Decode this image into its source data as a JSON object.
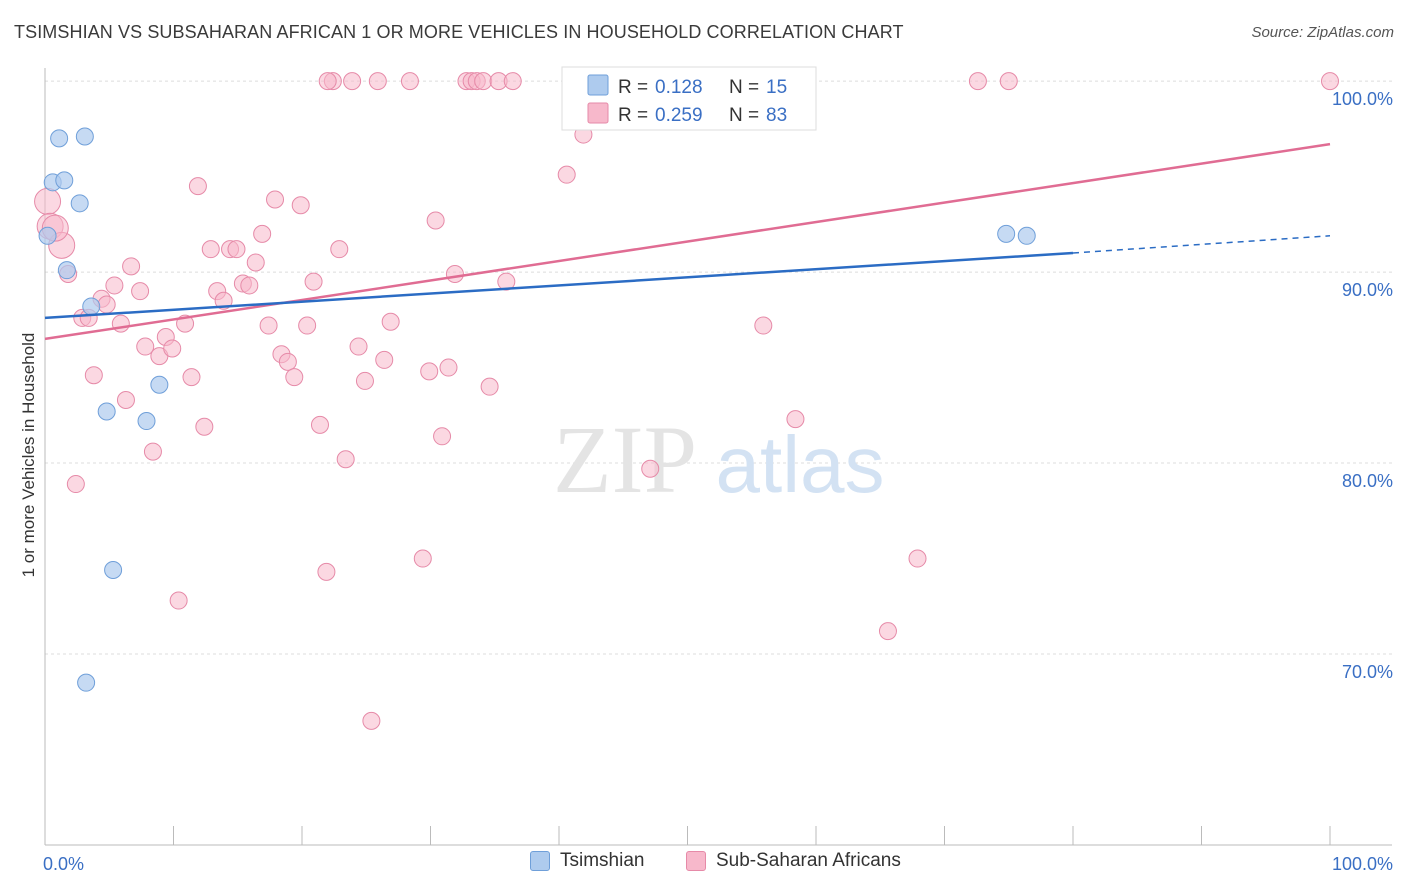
{
  "title": "TSIMSHIAN VS SUBSAHARAN AFRICAN 1 OR MORE VEHICLES IN HOUSEHOLD CORRELATION CHART",
  "source": "Source: ZipAtlas.com",
  "watermark": {
    "zip": "ZIP",
    "atlas": "atlas"
  },
  "colors": {
    "tsimshian_fill": "#aecbee",
    "tsimshian_stroke": "#6f9fd9",
    "tsimshian_line": "#2b6cc4",
    "ssa_fill": "#f7b8cb",
    "ssa_stroke": "#e68aa8",
    "ssa_line": "#e06c93",
    "value_text": "#3a6fc4",
    "grid": "#dcdcdc"
  },
  "legend_top": [
    {
      "r_label": "R =",
      "r_value": "0.128",
      "n_label": "N =",
      "n_value": "15"
    },
    {
      "r_label": "R =",
      "r_value": "0.259",
      "n_label": "N =",
      "n_value": "83"
    }
  ],
  "chart_data": {
    "type": "scatter",
    "title": "TSIMSHIAN VS SUBSAHARAN AFRICAN 1 OR MORE VEHICLES IN HOUSEHOLD CORRELATION CHART",
    "xlabel": "",
    "ylabel": "1 or more Vehicles in Household",
    "xlim": [
      0,
      100
    ],
    "ylim": [
      60,
      101
    ],
    "x_tick_labels": [
      "0.0%",
      "100.0%"
    ],
    "y_ticks": [
      70,
      80,
      90,
      100
    ],
    "y_tick_labels": [
      "70.0%",
      "80.0%",
      "90.0%",
      "100.0%"
    ],
    "grid": true,
    "legend_position": "bottom",
    "series": [
      {
        "name": "Tsimshian",
        "points": [
          [
            0.2,
            91.9
          ],
          [
            0.6,
            94.7
          ],
          [
            1.1,
            97.0
          ],
          [
            1.5,
            94.8
          ],
          [
            1.7,
            90.1
          ],
          [
            2.7,
            93.6
          ],
          [
            3.1,
            97.1
          ],
          [
            3.6,
            88.2
          ],
          [
            4.8,
            82.7
          ],
          [
            5.3,
            74.4
          ],
          [
            7.9,
            82.2
          ],
          [
            8.9,
            84.1
          ],
          [
            3.2,
            68.5
          ],
          [
            74.8,
            92.0
          ],
          [
            76.4,
            91.9
          ]
        ],
        "trend": {
          "x": [
            0,
            80
          ],
          "y": [
            87.6,
            91.0
          ],
          "dashed_to": [
            100,
            91.9
          ]
        }
      },
      {
        "name": "Sub-Saharan Africans",
        "points": [
          [
            0.2,
            93.7
          ],
          [
            0.4,
            92.4
          ],
          [
            1.3,
            91.4
          ],
          [
            1.8,
            89.9
          ],
          [
            2.4,
            78.9
          ],
          [
            2.9,
            87.6
          ],
          [
            3.4,
            87.6
          ],
          [
            3.8,
            84.6
          ],
          [
            4.4,
            88.6
          ],
          [
            4.8,
            88.3
          ],
          [
            5.4,
            89.3
          ],
          [
            5.9,
            87.3
          ],
          [
            6.3,
            83.3
          ],
          [
            6.7,
            90.3
          ],
          [
            7.4,
            89.0
          ],
          [
            7.8,
            86.1
          ],
          [
            8.4,
            80.6
          ],
          [
            8.9,
            85.6
          ],
          [
            9.4,
            86.6
          ],
          [
            9.9,
            86.0
          ],
          [
            10.4,
            72.8
          ],
          [
            10.9,
            87.3
          ],
          [
            11.4,
            84.5
          ],
          [
            11.9,
            94.5
          ],
          [
            12.4,
            81.9
          ],
          [
            12.9,
            91.2
          ],
          [
            13.4,
            89.0
          ],
          [
            13.9,
            88.5
          ],
          [
            14.4,
            91.2
          ],
          [
            14.9,
            91.2
          ],
          [
            15.4,
            89.4
          ],
          [
            15.9,
            89.3
          ],
          [
            16.4,
            90.5
          ],
          [
            16.9,
            92.0
          ],
          [
            17.4,
            87.2
          ],
          [
            17.9,
            93.8
          ],
          [
            18.4,
            85.7
          ],
          [
            18.9,
            85.3
          ],
          [
            19.4,
            84.5
          ],
          [
            19.9,
            93.5
          ],
          [
            20.4,
            87.2
          ],
          [
            20.9,
            89.5
          ],
          [
            21.4,
            82.0
          ],
          [
            21.9,
            74.3
          ],
          [
            22.4,
            100.0
          ],
          [
            22.9,
            91.2
          ],
          [
            23.4,
            80.2
          ],
          [
            23.9,
            100.0
          ],
          [
            24.4,
            86.1
          ],
          [
            24.9,
            84.3
          ],
          [
            25.4,
            66.5
          ],
          [
            25.9,
            100.0
          ],
          [
            26.4,
            85.4
          ],
          [
            26.9,
            87.4
          ],
          [
            28.4,
            100.0
          ],
          [
            29.4,
            75.0
          ],
          [
            29.9,
            84.8
          ],
          [
            30.4,
            92.7
          ],
          [
            30.9,
            81.4
          ],
          [
            31.4,
            85.0
          ],
          [
            31.9,
            89.9
          ],
          [
            32.8,
            100.0
          ],
          [
            33.2,
            100.0
          ],
          [
            33.6,
            100.0
          ],
          [
            34.1,
            100.0
          ],
          [
            34.6,
            84.0
          ],
          [
            35.3,
            100.0
          ],
          [
            35.9,
            89.5
          ],
          [
            36.4,
            100.0
          ],
          [
            40.6,
            95.1
          ],
          [
            41.4,
            100.0
          ],
          [
            41.9,
            97.2
          ],
          [
            47.1,
            79.7
          ],
          [
            55.6,
            100.0
          ],
          [
            55.9,
            87.2
          ],
          [
            58.4,
            82.3
          ],
          [
            65.6,
            71.2
          ],
          [
            67.9,
            75.0
          ],
          [
            72.6,
            100.0
          ],
          [
            75.0,
            100.0
          ],
          [
            100.0,
            100.0
          ],
          [
            0.8,
            92.3
          ],
          [
            22.0,
            100.0
          ]
        ],
        "trend": {
          "x": [
            0,
            100
          ],
          "y": [
            86.5,
            96.7
          ]
        }
      }
    ]
  },
  "legend_bottom": [
    {
      "label": "Tsimshian"
    },
    {
      "label": "Sub-Saharan Africans"
    }
  ]
}
